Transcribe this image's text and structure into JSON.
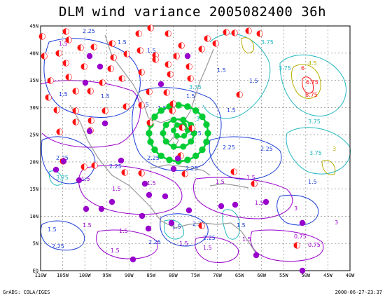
{
  "title": "DLM wind variance 2005082400 36h",
  "footer": {
    "left": "GrADS: COLA/IGES",
    "right": "2008-06-27-23:37"
  },
  "axes": {
    "lat_labels": [
      "45N",
      "40N",
      "35N",
      "30N",
      "25N",
      "20N",
      "15N",
      "10N",
      "5N",
      "EQ"
    ],
    "lon_labels": [
      "110W",
      "105W",
      "100W",
      "95W",
      "90W",
      "85W",
      "80W",
      "75W",
      "70W",
      "65W",
      "60W",
      "55W",
      "50W",
      "45W",
      "40W"
    ]
  },
  "contour_labels": [
    "2.25",
    "1.5",
    "3.75",
    "3",
    "6",
    "6.75",
    "5.25",
    "4.5",
    "0.75"
  ],
  "colors": {
    "purple": "#9900cc",
    "blue": "#1a3cd6",
    "cyan": "#20b8c0",
    "green": "#00cc33",
    "red": "#ff1111",
    "olive": "#b8b000",
    "coast": "#999999",
    "grid": "#777777"
  },
  "legend": {}
}
